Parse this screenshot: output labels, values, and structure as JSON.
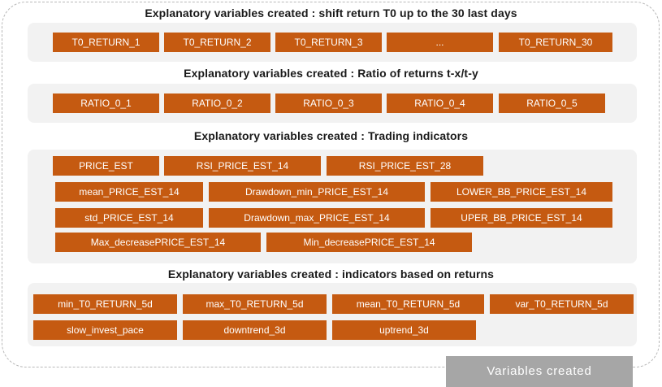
{
  "sections": [
    {
      "heading": "Explanatory variables created : shift return T0 up to the 30 last days",
      "items": [
        "T0_RETURN_1",
        "T0_RETURN_2",
        "T0_RETURN_3",
        "...",
        "T0_RETURN_30"
      ]
    },
    {
      "heading": "Explanatory variables created : Ratio of returns t-x/t-y",
      "items": [
        "RATIO_0_1",
        "RATIO_0_2",
        "RATIO_0_3",
        "RATIO_0_4",
        "RATIO_0_5"
      ]
    },
    {
      "heading": "Explanatory variables created : Trading indicators",
      "items": [
        "PRICE_EST",
        "RSI_PRICE_EST_14",
        "RSI_PRICE_EST_28",
        "mean_PRICE_EST_14",
        "Drawdown_min_PRICE_EST_14",
        "LOWER_BB_PRICE_EST_14",
        "std_PRICE_EST_14",
        "Drawdown_max_PRICE_EST_14",
        "UPER_BB_PRICE_EST_14",
        "Max_decreasePRICE_EST_14",
        "Min_decreasePRICE_EST_14"
      ]
    },
    {
      "heading": "Explanatory variables created : indicators based on returns",
      "items": [
        "min_T0_RETURN_5d",
        "max_T0_RETURN_5d",
        "mean_T0_RETURN_5d",
        "var_T0_RETURN_5d",
        "slow_invest_pace",
        "downtrend_3d",
        "uptrend_3d"
      ]
    }
  ],
  "legend": "Variables created",
  "colors": {
    "box": "#c55a11",
    "panel": "#f2f2f2",
    "legend": "#a6a6a6"
  }
}
